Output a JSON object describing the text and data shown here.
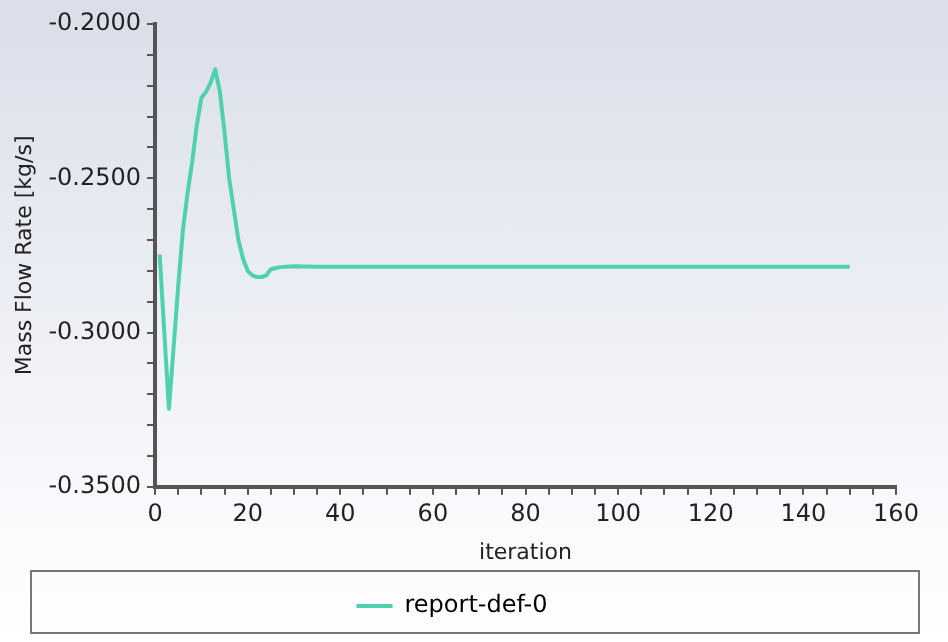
{
  "chart_data": {
    "type": "line",
    "xlabel": "iteration",
    "ylabel": "Mass Flow Rate [kg/s]",
    "x": [
      1,
      2,
      3,
      4,
      5,
      6,
      7,
      8,
      9,
      10,
      11,
      12,
      13,
      14,
      15,
      16,
      17,
      18,
      19,
      20,
      21,
      22,
      23,
      24,
      25,
      27,
      30,
      35,
      50,
      100,
      150
    ],
    "series": [
      {
        "name": "report-def-0",
        "color": "#4fd1b0",
        "values": [
          -0.2747,
          -0.3,
          -0.3247,
          -0.305,
          -0.285,
          -0.267,
          -0.255,
          -0.245,
          -0.233,
          -0.224,
          -0.222,
          -0.219,
          -0.2147,
          -0.222,
          -0.235,
          -0.25,
          -0.26,
          -0.27,
          -0.276,
          -0.28,
          -0.2815,
          -0.282,
          -0.282,
          -0.2815,
          -0.2795,
          -0.2788,
          -0.2785,
          -0.2787,
          -0.2787,
          -0.2787,
          -0.2787
        ]
      }
    ],
    "xlim": [
      0,
      160
    ],
    "xticks": [
      0,
      {
        "value": 5,
        "label": null
      },
      {
        "value": 10,
        "label": null
      },
      {
        "value": 15,
        "label": null
      },
      20,
      {
        "value": 25,
        "label": null
      },
      {
        "value": 30,
        "label": null
      },
      {
        "value": 35,
        "label": null
      },
      40,
      {
        "value": 45,
        "label": null
      },
      {
        "value": 50,
        "label": null
      },
      {
        "value": 55,
        "label": null
      },
      60,
      {
        "value": 65,
        "label": null
      },
      {
        "value": 70,
        "label": null
      },
      {
        "value": 75,
        "label": null
      },
      80,
      {
        "value": 85,
        "label": null
      },
      {
        "value": 90,
        "label": null
      },
      {
        "value": 95,
        "label": null
      },
      100,
      {
        "value": 105,
        "label": null
      },
      {
        "value": 110,
        "label": null
      },
      {
        "value": 115,
        "label": null
      },
      120,
      {
        "value": 125,
        "label": null
      },
      {
        "value": 130,
        "label": null
      },
      {
        "value": 135,
        "label": null
      },
      140,
      {
        "value": 145,
        "label": null
      },
      {
        "value": 150,
        "label": null
      },
      {
        "value": 155,
        "label": null
      },
      160
    ],
    "ylim": [
      -0.35,
      -0.2
    ],
    "yticks": [
      {
        "value": -0.35,
        "label": "-0.3500"
      },
      {
        "value": -0.34,
        "label": null
      },
      {
        "value": -0.33,
        "label": null
      },
      {
        "value": -0.32,
        "label": null
      },
      {
        "value": -0.31,
        "label": null
      },
      {
        "value": -0.3,
        "label": "-0.3000"
      },
      {
        "value": -0.29,
        "label": null
      },
      {
        "value": -0.28,
        "label": null
      },
      {
        "value": -0.27,
        "label": null
      },
      {
        "value": -0.26,
        "label": null
      },
      {
        "value": -0.25,
        "label": "-0.2500"
      },
      {
        "value": -0.24,
        "label": null
      },
      {
        "value": -0.23,
        "label": null
      },
      {
        "value": -0.22,
        "label": null
      },
      {
        "value": -0.21,
        "label": null
      },
      {
        "value": -0.2,
        "label": "-0.2000"
      }
    ],
    "grid": false,
    "legend": "bottom",
    "marker": "none",
    "line_style": "solid"
  }
}
